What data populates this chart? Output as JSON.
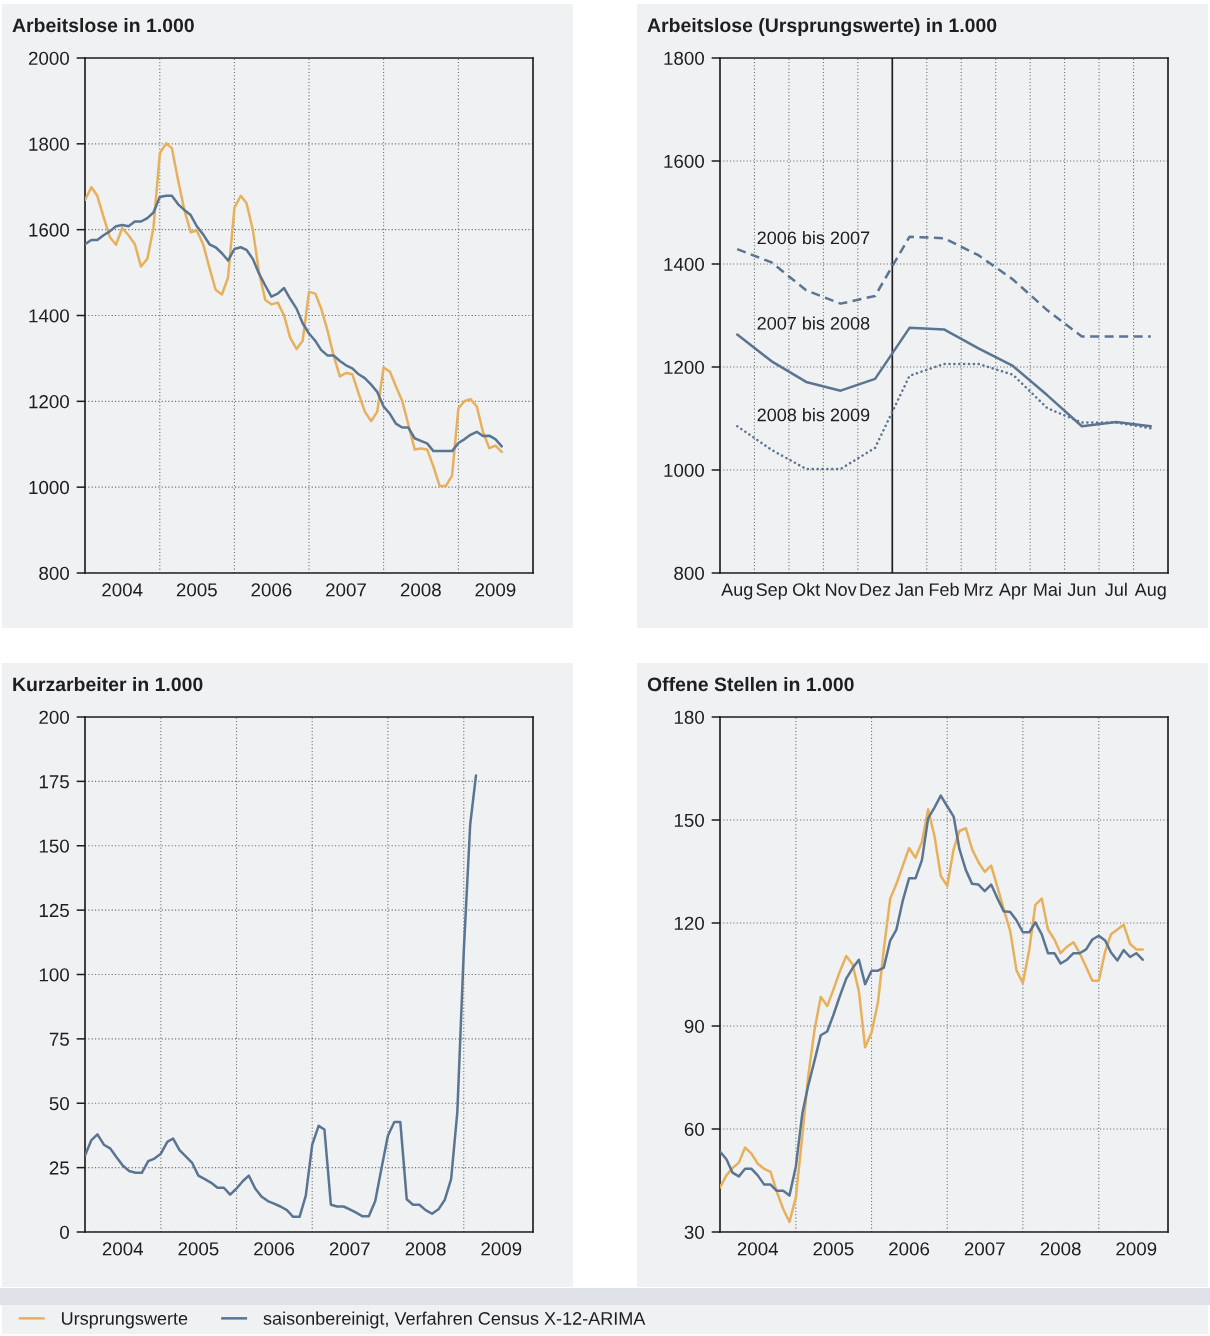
{
  "chart_data": [
    {
      "type": "line",
      "title": "Arbeitslose in 1.000",
      "x": [
        "2004-01",
        "2004-02",
        "2004-03",
        "2004-04",
        "2004-05",
        "2004-06",
        "2004-07",
        "2004-08",
        "2004-09",
        "2004-10",
        "2004-11",
        "2004-12",
        "2005-01",
        "2005-02",
        "2005-03",
        "2005-04",
        "2005-05",
        "2005-06",
        "2005-07",
        "2005-08",
        "2005-09",
        "2005-10",
        "2005-11",
        "2005-12",
        "2006-01",
        "2006-02",
        "2006-03",
        "2006-04",
        "2006-05",
        "2006-06",
        "2006-07",
        "2006-08",
        "2006-09",
        "2006-10",
        "2006-11",
        "2006-12",
        "2007-01",
        "2007-02",
        "2007-03",
        "2007-04",
        "2007-05",
        "2007-06",
        "2007-07",
        "2007-08",
        "2007-09",
        "2007-10",
        "2007-11",
        "2007-12",
        "2008-01",
        "2008-02",
        "2008-03",
        "2008-04",
        "2008-05",
        "2008-06",
        "2008-07",
        "2008-08",
        "2008-09",
        "2008-10",
        "2008-11",
        "2008-12",
        "2009-01",
        "2009-02",
        "2009-03",
        "2009-04",
        "2009-05",
        "2009-06",
        "2009-07",
        "2009-08"
      ],
      "series": [
        {
          "name": "Ursprungswerte",
          "color": "#e8b05a",
          "values": [
            1669,
            1699,
            1679,
            1629,
            1583,
            1565,
            1604,
            1587,
            1566,
            1514,
            1532,
            1604,
            1778,
            1801,
            1790,
            1714,
            1646,
            1594,
            1598,
            1566,
            1511,
            1460,
            1449,
            1489,
            1651,
            1679,
            1662,
            1600,
            1502,
            1436,
            1426,
            1430,
            1400,
            1348,
            1322,
            1341,
            1455,
            1451,
            1417,
            1366,
            1307,
            1258,
            1266,
            1263,
            1218,
            1176,
            1154,
            1176,
            1279,
            1269,
            1235,
            1201,
            1146,
            1088,
            1090,
            1088,
            1048,
            1003,
            1003,
            1027,
            1184,
            1201,
            1205,
            1188,
            1129,
            1091,
            1097,
            1082
          ]
        },
        {
          "name": "saisonbereinigt, Verfahren Census X-12-ARIMA",
          "color": "#5a7591",
          "values": [
            1566,
            1576,
            1576,
            1587,
            1596,
            1608,
            1611,
            1608,
            1619,
            1619,
            1627,
            1640,
            1676,
            1679,
            1679,
            1659,
            1646,
            1634,
            1608,
            1589,
            1566,
            1559,
            1545,
            1528,
            1555,
            1559,
            1553,
            1532,
            1498,
            1470,
            1444,
            1451,
            1464,
            1439,
            1416,
            1382,
            1358,
            1341,
            1320,
            1307,
            1307,
            1294,
            1284,
            1277,
            1263,
            1254,
            1239,
            1222,
            1188,
            1171,
            1148,
            1139,
            1139,
            1114,
            1108,
            1102,
            1084,
            1084,
            1084,
            1084,
            1103,
            1112,
            1122,
            1129,
            1119,
            1120,
            1112,
            1095
          ]
        }
      ],
      "xlim": [
        "2004-01",
        "2010-01"
      ],
      "xticks": [
        {
          "value": "2004-07",
          "label": "2004"
        },
        {
          "value": "2005-01",
          "label": null
        },
        {
          "value": "2005-07",
          "label": "2005"
        },
        {
          "value": "2006-01",
          "label": null
        },
        {
          "value": "2006-07",
          "label": "2006"
        },
        {
          "value": "2007-01",
          "label": null
        },
        {
          "value": "2007-07",
          "label": "2007"
        },
        {
          "value": "2008-01",
          "label": null
        },
        {
          "value": "2008-07",
          "label": "2008"
        },
        {
          "value": "2009-01",
          "label": null
        },
        {
          "value": "2009-07",
          "label": "2009"
        }
      ],
      "ylim": [
        800,
        2000
      ],
      "yticks": [
        800,
        1000,
        1200,
        1400,
        1600,
        1800,
        2000
      ],
      "grid": true,
      "legend": "bottom"
    },
    {
      "type": "line",
      "title": "Arbeitslose (Ursprungswerte) in 1.000",
      "categories": [
        "Aug",
        "Sep",
        "Okt",
        "Nov",
        "Dez",
        "Jan",
        "Feb",
        "Mrz",
        "Apr",
        "Mai",
        "Jun",
        "Jul",
        "Aug"
      ],
      "series": [
        {
          "name": "2006 bis 2007",
          "color": "#5a7591",
          "line_style": "dashed",
          "values": [
            1429,
            1403,
            1349,
            1323,
            1338,
            1453,
            1450,
            1417,
            1370,
            1310,
            1259,
            1259,
            1259
          ]
        },
        {
          "name": "2007 bis 2008",
          "color": "#5a7591",
          "line_style": "solid",
          "values": [
            1263,
            1211,
            1171,
            1154,
            1177,
            1276,
            1273,
            1236,
            1202,
            1145,
            1085,
            1093,
            1085
          ]
        },
        {
          "name": "2008 bis 2009",
          "color": "#5a7591",
          "line_style": "dotted",
          "values": [
            1085,
            1039,
            1002,
            1002,
            1043,
            1183,
            1206,
            1206,
            1185,
            1120,
            1092,
            1092,
            1081
          ]
        }
      ],
      "ylim": [
        800,
        1800
      ],
      "yticks": [
        800,
        1000,
        1200,
        1400,
        1600,
        1800
      ],
      "grid": true,
      "ref_lines": [
        {
          "axis": "x",
          "value": "Jan",
          "color": "#1f1f1f"
        }
      ]
    },
    {
      "type": "line",
      "title": "Kurzarbeiter in 1.000",
      "x": [
        "2004-01",
        "2004-02",
        "2004-03",
        "2004-04",
        "2004-05",
        "2004-06",
        "2004-07",
        "2004-08",
        "2004-09",
        "2004-10",
        "2004-11",
        "2004-12",
        "2005-01",
        "2005-02",
        "2005-03",
        "2005-04",
        "2005-05",
        "2005-06",
        "2005-07",
        "2005-08",
        "2005-09",
        "2005-10",
        "2005-11",
        "2005-12",
        "2006-01",
        "2006-02",
        "2006-03",
        "2006-04",
        "2006-05",
        "2006-06",
        "2006-07",
        "2006-08",
        "2006-09",
        "2006-10",
        "2006-11",
        "2006-12",
        "2007-01",
        "2007-02",
        "2007-03",
        "2007-04",
        "2007-05",
        "2007-06",
        "2007-07",
        "2007-08",
        "2007-09",
        "2007-10",
        "2007-11",
        "2007-12",
        "2008-01",
        "2008-02",
        "2008-03",
        "2008-04",
        "2008-05",
        "2008-06",
        "2008-07",
        "2008-08",
        "2008-09",
        "2008-10",
        "2008-11",
        "2008-12",
        "2009-01",
        "2009-02",
        "2009-03"
      ],
      "series": [
        {
          "name": "saisonbereinigt, Verfahren Census X-12-ARIMA",
          "color": "#5a7591",
          "values": [
            29.7,
            35.7,
            37.9,
            33.9,
            32.5,
            29.0,
            25.8,
            23.7,
            23.0,
            23.0,
            27.5,
            28.5,
            30.4,
            35.0,
            36.3,
            31.8,
            29.4,
            26.8,
            21.9,
            20.5,
            19.1,
            17.2,
            17.2,
            14.5,
            16.9,
            19.8,
            21.9,
            16.9,
            13.8,
            12.0,
            11.0,
            9.9,
            8.5,
            5.9,
            5.9,
            14.1,
            33.9,
            41.2,
            39.8,
            10.6,
            9.9,
            9.9,
            8.8,
            7.5,
            6.1,
            6.1,
            12.0,
            24.7,
            37.4,
            42.7,
            42.7,
            12.7,
            10.6,
            10.6,
            8.5,
            7.1,
            8.8,
            12.4,
            20.5,
            46.6,
            108.8,
            158.2,
            177.3
          ]
        }
      ],
      "xlim": [
        "2004-01",
        "2009-12"
      ],
      "xticks": [
        {
          "value": "2004-07",
          "label": "2004"
        },
        {
          "value": "2005-01",
          "label": null
        },
        {
          "value": "2005-07",
          "label": "2005"
        },
        {
          "value": "2006-01",
          "label": null
        },
        {
          "value": "2006-07",
          "label": "2006"
        },
        {
          "value": "2007-01",
          "label": null
        },
        {
          "value": "2007-07",
          "label": "2007"
        },
        {
          "value": "2008-01",
          "label": null
        },
        {
          "value": "2008-07",
          "label": "2008"
        },
        {
          "value": "2009-01",
          "label": null
        },
        {
          "value": "2009-07",
          "label": "2009"
        }
      ],
      "ylim": [
        0,
        200
      ],
      "yticks": [
        0,
        25,
        50,
        75,
        100,
        125,
        150,
        175,
        200
      ],
      "grid": true,
      "legend": "bottom"
    },
    {
      "type": "line",
      "title": "Offene Stellen in 1.000",
      "x": [
        "2004-01",
        "2004-02",
        "2004-03",
        "2004-04",
        "2004-05",
        "2004-06",
        "2004-07",
        "2004-08",
        "2004-09",
        "2004-10",
        "2004-11",
        "2004-12",
        "2005-01",
        "2005-02",
        "2005-03",
        "2005-04",
        "2005-05",
        "2005-06",
        "2005-07",
        "2005-08",
        "2005-09",
        "2005-10",
        "2005-11",
        "2005-12",
        "2006-01",
        "2006-02",
        "2006-03",
        "2006-04",
        "2006-05",
        "2006-06",
        "2006-07",
        "2006-08",
        "2006-09",
        "2006-10",
        "2006-11",
        "2006-12",
        "2007-01",
        "2007-02",
        "2007-03",
        "2007-04",
        "2007-05",
        "2007-06",
        "2007-07",
        "2007-08",
        "2007-09",
        "2007-10",
        "2007-11",
        "2007-12",
        "2008-01",
        "2008-02",
        "2008-03",
        "2008-04",
        "2008-05",
        "2008-06",
        "2008-07",
        "2008-08",
        "2008-09",
        "2008-10",
        "2008-11",
        "2008-12",
        "2009-01",
        "2009-02",
        "2009-03",
        "2009-04",
        "2009-05",
        "2009-06",
        "2009-07",
        "2009-08"
      ],
      "series": [
        {
          "name": "Ursprungswerte",
          "color": "#e8b05a",
          "values": [
            43.0,
            46.5,
            48.6,
            50.2,
            54.6,
            52.8,
            49.9,
            48.4,
            47.5,
            41.7,
            36.7,
            32.9,
            40.1,
            58.1,
            75.1,
            88.9,
            98.5,
            95.8,
            100.6,
            105.9,
            110.4,
            108.0,
            100.1,
            83.8,
            88.1,
            96.9,
            112.3,
            127.1,
            131.4,
            136.7,
            141.8,
            139.0,
            143.6,
            153.1,
            145.2,
            133.7,
            130.8,
            141.5,
            146.8,
            147.6,
            141.5,
            137.7,
            134.9,
            136.7,
            130.3,
            123.9,
            117.6,
            106.2,
            102.5,
            112.3,
            125.3,
            127.1,
            118.1,
            115.2,
            111.2,
            113.1,
            114.4,
            111.2,
            107.2,
            103.2,
            103.2,
            111.7,
            116.7,
            118.1,
            119.5,
            113.9,
            112.3,
            112.3
          ]
        },
        {
          "name": "saisonbereinigt, Verfahren Census X-12-ARIMA",
          "color": "#5a7591",
          "values": [
            53.4,
            51.2,
            47.3,
            46.2,
            48.4,
            48.4,
            46.5,
            43.8,
            43.8,
            42.0,
            42.0,
            40.6,
            49.1,
            64.5,
            72.5,
            79.9,
            87.3,
            88.4,
            93.2,
            98.7,
            103.8,
            106.8,
            109.3,
            102.2,
            106.1,
            106.1,
            107.0,
            114.9,
            118.1,
            126.6,
            133.0,
            133.0,
            138.3,
            150.5,
            153.7,
            157.1,
            154.0,
            151.0,
            141.5,
            135.4,
            131.4,
            131.2,
            129.3,
            131.2,
            127.1,
            123.4,
            123.2,
            120.8,
            117.3,
            117.3,
            120.2,
            116.7,
            111.2,
            111.2,
            108.2,
            109.3,
            111.2,
            111.2,
            112.3,
            115.2,
            116.3,
            114.9,
            111.4,
            109.1,
            112.1,
            110.1,
            111.2,
            109.3
          ]
        }
      ],
      "xlim": [
        "2004-01",
        "2009-12"
      ],
      "xticks": [
        {
          "value": "2004-07",
          "label": "2004"
        },
        {
          "value": "2005-01",
          "label": null
        },
        {
          "value": "2005-07",
          "label": "2005"
        },
        {
          "value": "2006-01",
          "label": null
        },
        {
          "value": "2006-07",
          "label": "2006"
        },
        {
          "value": "2007-01",
          "label": null
        },
        {
          "value": "2007-07",
          "label": "2007"
        },
        {
          "value": "2008-01",
          "label": null
        },
        {
          "value": "2008-07",
          "label": "2008"
        },
        {
          "value": "2009-01",
          "label": null
        },
        {
          "value": "2009-07",
          "label": "2009"
        }
      ],
      "ylim": [
        30,
        180
      ],
      "yticks": [
        30,
        60,
        90,
        120,
        150,
        180
      ],
      "grid": true,
      "legend": "bottom"
    }
  ]
}
